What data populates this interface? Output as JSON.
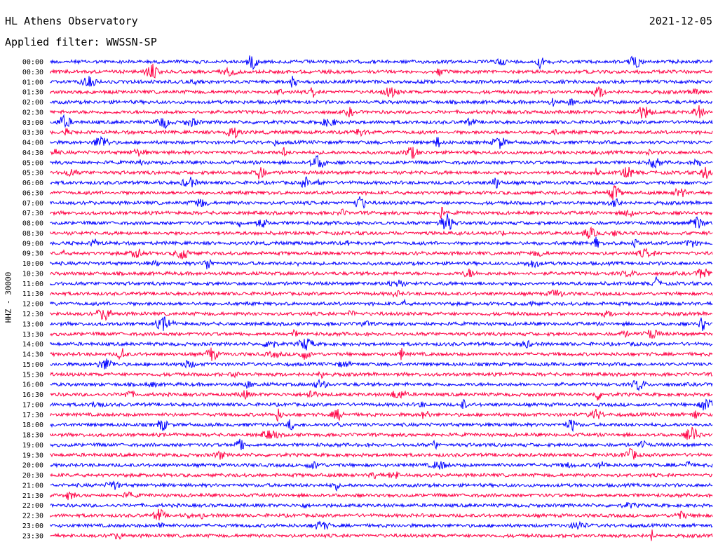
{
  "header": {
    "station": "HL Athens Observatory",
    "date": "2021-12-05",
    "filter_label": "Applied filter: WWSSN-SP"
  },
  "chart_data": {
    "type": "line",
    "title": "HL Athens Observatory",
    "channel_label": "HHZ - 30000",
    "trace_labels": [
      "00:00",
      "00:30",
      "01:00",
      "01:30",
      "02:00",
      "02:30",
      "03:00",
      "03:30",
      "04:00",
      "04:30",
      "05:00",
      "05:30",
      "06:00",
      "06:30",
      "07:00",
      "07:30",
      "08:00",
      "08:30",
      "09:00",
      "09:30",
      "10:00",
      "10:30",
      "11:00",
      "11:30",
      "12:00",
      "12:30",
      "13:00",
      "13:30",
      "14:00",
      "14:30",
      "15:00",
      "15:30",
      "16:00",
      "16:30",
      "17:00",
      "17:30",
      "18:00",
      "18:30",
      "19:00",
      "19:30",
      "20:00",
      "20:30",
      "21:00",
      "21:30",
      "22:00",
      "22:30",
      "23:00",
      "23:30"
    ],
    "trace_colors": [
      "#0000ff",
      "#ff0044"
    ],
    "grid": false
  }
}
